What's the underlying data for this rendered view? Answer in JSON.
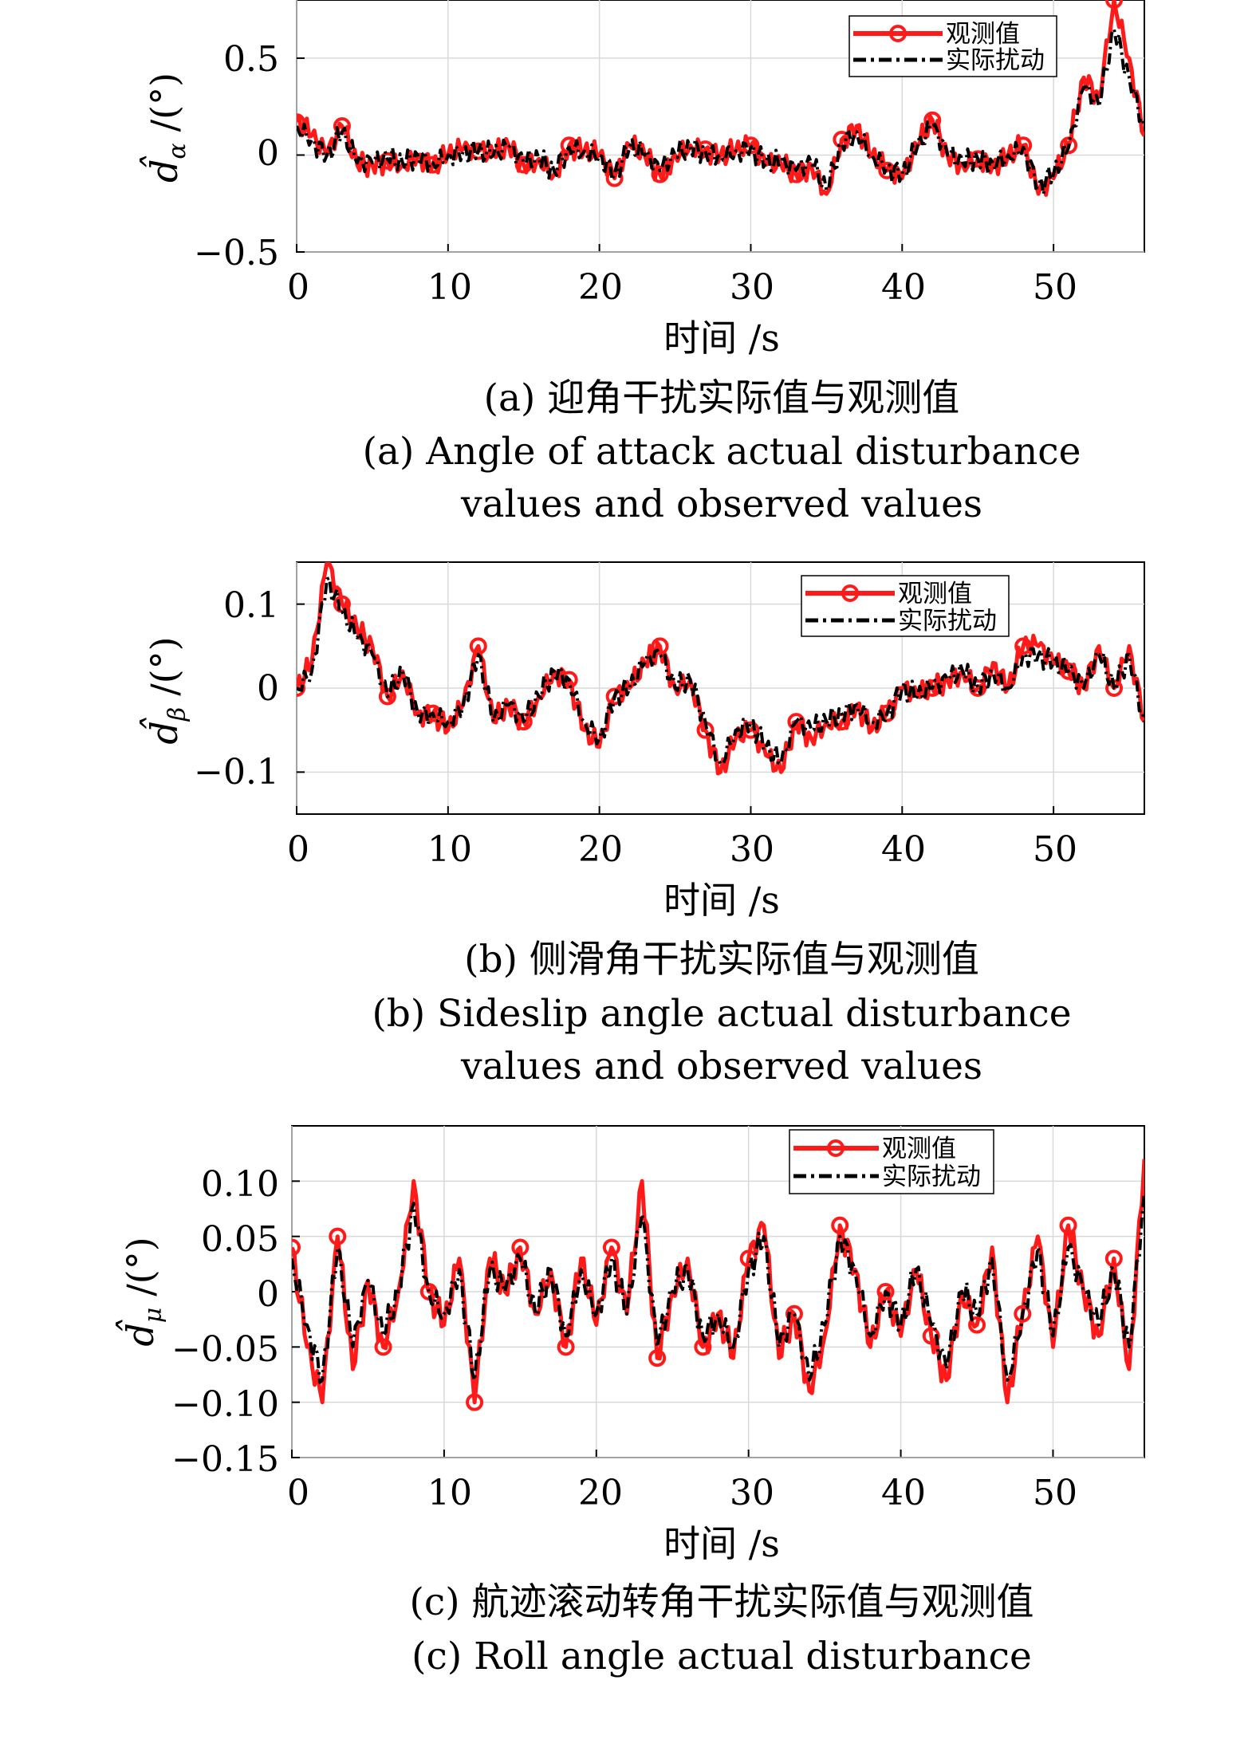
{
  "legend": {
    "observed": "观测值",
    "actual": "实际扰动"
  },
  "colors": {
    "observed": "#ff1a1a",
    "actual": "#000000",
    "grid": "#d9d9d9"
  },
  "charts": [
    {
      "id": "a",
      "ylabel_main": "d̂",
      "ylabel_sub": "α",
      "ylabel_unit": "/(°)",
      "xlabel": "时间 /s",
      "caption_cn": "(a) 迎角干扰实际值与观测值",
      "caption_en_1": "(a) Angle of attack actual disturbance",
      "caption_en_2": "values and observed values",
      "x_ticks": [
        "0",
        "10",
        "20",
        "30",
        "40",
        "50"
      ],
      "y_ticks": [
        "0.5",
        "0",
        "−0.5"
      ]
    },
    {
      "id": "b",
      "ylabel_main": "d̂",
      "ylabel_sub": "β",
      "ylabel_unit": "/(°)",
      "xlabel": "时间 /s",
      "caption_cn": "(b) 侧滑角干扰实际值与观测值",
      "caption_en_1": "(b) Sideslip angle actual disturbance",
      "caption_en_2": "values and observed values",
      "x_ticks": [
        "0",
        "10",
        "20",
        "30",
        "40",
        "50"
      ],
      "y_ticks": [
        "0.1",
        "0",
        "−0.1"
      ]
    },
    {
      "id": "c",
      "ylabel_main": "d̂",
      "ylabel_sub": "μ",
      "ylabel_unit": "/(°)",
      "xlabel": "时间 /s",
      "caption_cn": "(c) 航迹滚动转角干扰实际值与观测值",
      "caption_en_1": "(c) Roll angle actual disturbance",
      "x_ticks": [
        "0",
        "10",
        "20",
        "30",
        "40",
        "50"
      ],
      "y_ticks": [
        "0.10",
        "0.05",
        "0",
        "−0.05",
        "−0.10",
        "−0.15"
      ]
    }
  ],
  "chart_data": [
    {
      "type": "line",
      "xlim": [
        0,
        56
      ],
      "ylim": [
        -0.5,
        0.8
      ],
      "grid": true,
      "legend_position": "top-right",
      "series": [
        {
          "name": "观测值",
          "style": "solid-red-circle-markers",
          "x": [
            0,
            1,
            2,
            3,
            4,
            5,
            6,
            7,
            8,
            9,
            10,
            11,
            12,
            13,
            14,
            15,
            16,
            17,
            18,
            19,
            20,
            21,
            22,
            23,
            24,
            25,
            26,
            27,
            28,
            29,
            30,
            31,
            32,
            33,
            34,
            35,
            36,
            37,
            38,
            39,
            40,
            41,
            42,
            43,
            44,
            45,
            46,
            47,
            48,
            49,
            50,
            51,
            52,
            53,
            54,
            55,
            56
          ],
          "y": [
            0.17,
            0.1,
            0.0,
            0.15,
            -0.05,
            -0.05,
            -0.03,
            -0.05,
            0.0,
            -0.05,
            0.0,
            0.03,
            0.02,
            0.0,
            0.05,
            -0.05,
            -0.02,
            -0.1,
            0.05,
            0.02,
            0.0,
            -0.12,
            0.05,
            0.0,
            -0.1,
            0.0,
            0.05,
            0.03,
            0.0,
            0.02,
            0.05,
            -0.05,
            -0.05,
            -0.1,
            -0.05,
            -0.2,
            0.08,
            0.15,
            0.0,
            -0.08,
            -0.12,
            0.05,
            0.18,
            0.0,
            -0.05,
            -0.02,
            -0.05,
            0.0,
            0.05,
            -0.2,
            -0.12,
            0.05,
            0.4,
            0.3,
            0.8,
            0.5,
            0.1
          ]
        },
        {
          "name": "实际扰动",
          "style": "dash-dot-black",
          "x": [
            0,
            1,
            2,
            3,
            4,
            5,
            6,
            7,
            8,
            9,
            10,
            11,
            12,
            13,
            14,
            15,
            16,
            17,
            18,
            19,
            20,
            21,
            22,
            23,
            24,
            25,
            26,
            27,
            28,
            29,
            30,
            31,
            32,
            33,
            34,
            35,
            36,
            37,
            38,
            39,
            40,
            41,
            42,
            43,
            44,
            45,
            46,
            47,
            48,
            49,
            50,
            51,
            52,
            53,
            54,
            55,
            56
          ],
          "y": [
            0.15,
            0.08,
            0.0,
            0.12,
            -0.04,
            -0.04,
            -0.02,
            -0.04,
            0.0,
            -0.04,
            0.0,
            0.02,
            0.02,
            0.0,
            0.04,
            -0.04,
            -0.02,
            -0.08,
            0.04,
            0.02,
            0.0,
            -0.1,
            0.04,
            0.0,
            -0.08,
            0.0,
            0.04,
            0.02,
            0.0,
            0.02,
            0.04,
            -0.04,
            -0.04,
            -0.08,
            -0.04,
            -0.18,
            0.06,
            0.12,
            0.0,
            -0.06,
            -0.1,
            0.04,
            0.15,
            0.0,
            -0.04,
            -0.02,
            -0.04,
            0.0,
            0.04,
            -0.16,
            -0.1,
            0.04,
            0.35,
            0.25,
            0.65,
            0.4,
            0.15
          ]
        }
      ]
    },
    {
      "type": "line",
      "xlim": [
        0,
        56
      ],
      "ylim": [
        -0.15,
        0.15
      ],
      "grid": true,
      "legend_position": "top-right",
      "series": [
        {
          "name": "观测值",
          "style": "solid-red-circle-markers",
          "x": [
            0,
            1,
            2,
            3,
            4,
            5,
            6,
            7,
            8,
            9,
            10,
            11,
            12,
            13,
            14,
            15,
            16,
            17,
            18,
            19,
            20,
            21,
            22,
            23,
            24,
            25,
            26,
            27,
            28,
            29,
            30,
            31,
            32,
            33,
            34,
            35,
            36,
            37,
            38,
            39,
            40,
            41,
            42,
            43,
            44,
            45,
            46,
            47,
            48,
            49,
            50,
            51,
            52,
            53,
            54,
            55,
            56
          ],
          "y": [
            0.0,
            0.03,
            0.15,
            0.1,
            0.07,
            0.05,
            -0.01,
            0.02,
            -0.03,
            -0.03,
            -0.05,
            -0.02,
            0.05,
            -0.04,
            -0.02,
            -0.04,
            -0.01,
            0.02,
            0.01,
            -0.05,
            -0.07,
            -0.01,
            0.0,
            0.03,
            0.05,
            0.0,
            0.01,
            -0.05,
            -0.1,
            -0.06,
            -0.05,
            -0.08,
            -0.1,
            -0.04,
            -0.06,
            -0.04,
            -0.04,
            -0.02,
            -0.05,
            -0.03,
            0.0,
            -0.01,
            0.0,
            0.01,
            0.02,
            0.0,
            0.03,
            0.0,
            0.05,
            0.05,
            0.03,
            0.02,
            0.0,
            0.05,
            0.0,
            0.05,
            -0.04
          ]
        },
        {
          "name": "实际扰动",
          "style": "dash-dot-black",
          "x": [
            0,
            1,
            2,
            3,
            4,
            5,
            6,
            7,
            8,
            9,
            10,
            11,
            12,
            13,
            14,
            15,
            16,
            17,
            18,
            19,
            20,
            21,
            22,
            23,
            24,
            25,
            26,
            27,
            28,
            29,
            30,
            31,
            32,
            33,
            34,
            35,
            36,
            37,
            38,
            39,
            40,
            41,
            42,
            43,
            44,
            45,
            46,
            47,
            48,
            49,
            50,
            51,
            52,
            53,
            54,
            55,
            56
          ],
          "y": [
            0.0,
            0.02,
            0.13,
            0.09,
            0.06,
            0.04,
            -0.01,
            0.02,
            -0.03,
            -0.03,
            -0.04,
            -0.02,
            0.04,
            -0.04,
            -0.02,
            -0.04,
            -0.01,
            0.02,
            0.01,
            -0.04,
            -0.06,
            -0.01,
            0.0,
            0.03,
            0.04,
            0.0,
            0.01,
            -0.04,
            -0.09,
            -0.05,
            -0.04,
            -0.07,
            -0.09,
            -0.04,
            -0.05,
            -0.04,
            -0.03,
            -0.02,
            -0.04,
            -0.03,
            0.0,
            -0.01,
            0.0,
            0.01,
            0.02,
            0.0,
            0.02,
            0.0,
            0.04,
            0.04,
            0.03,
            0.02,
            0.0,
            0.04,
            0.0,
            0.04,
            -0.04
          ]
        }
      ]
    },
    {
      "type": "line",
      "xlim": [
        0,
        56
      ],
      "ylim": [
        -0.15,
        0.15
      ],
      "grid": true,
      "legend_position": "top-right",
      "series": [
        {
          "name": "观测值",
          "style": "solid-red-circle-markers",
          "x": [
            0,
            1,
            2,
            3,
            4,
            5,
            6,
            7,
            8,
            9,
            10,
            11,
            12,
            13,
            14,
            15,
            16,
            17,
            18,
            19,
            20,
            21,
            22,
            23,
            24,
            25,
            26,
            27,
            28,
            29,
            30,
            31,
            32,
            33,
            34,
            35,
            36,
            37,
            38,
            39,
            40,
            41,
            42,
            43,
            44,
            45,
            46,
            47,
            48,
            49,
            50,
            51,
            52,
            53,
            54,
            55,
            56
          ],
          "y": [
            0.04,
            -0.05,
            -0.1,
            0.05,
            -0.07,
            0.01,
            -0.05,
            0.0,
            0.1,
            0.0,
            -0.03,
            0.03,
            -0.1,
            0.03,
            0.0,
            0.04,
            -0.02,
            0.02,
            -0.05,
            0.03,
            -0.03,
            0.04,
            -0.02,
            0.1,
            -0.06,
            0.0,
            0.03,
            -0.05,
            -0.02,
            -0.06,
            0.03,
            0.06,
            -0.06,
            -0.02,
            -0.09,
            -0.04,
            0.06,
            0.02,
            -0.05,
            0.0,
            -0.04,
            0.02,
            -0.04,
            -0.08,
            0.0,
            -0.03,
            0.04,
            -0.1,
            -0.02,
            0.05,
            -0.05,
            0.06,
            0.0,
            -0.04,
            0.03,
            -0.07,
            0.12
          ]
        },
        {
          "name": "实际扰动",
          "style": "dash-dot-black",
          "x": [
            0,
            1,
            2,
            3,
            4,
            5,
            6,
            7,
            8,
            9,
            10,
            11,
            12,
            13,
            14,
            15,
            16,
            17,
            18,
            19,
            20,
            21,
            22,
            23,
            24,
            25,
            26,
            27,
            28,
            29,
            30,
            31,
            32,
            33,
            34,
            35,
            36,
            37,
            38,
            39,
            40,
            41,
            42,
            43,
            44,
            45,
            46,
            47,
            48,
            49,
            50,
            51,
            52,
            53,
            54,
            55,
            56
          ],
          "y": [
            0.03,
            -0.03,
            -0.08,
            0.04,
            -0.05,
            0.01,
            -0.04,
            0.0,
            0.08,
            0.0,
            -0.02,
            0.02,
            -0.08,
            0.02,
            0.0,
            0.03,
            -0.02,
            0.02,
            -0.04,
            0.02,
            -0.02,
            0.03,
            -0.02,
            0.07,
            -0.05,
            0.0,
            0.02,
            -0.04,
            -0.02,
            -0.05,
            0.02,
            0.05,
            -0.05,
            -0.02,
            -0.08,
            -0.03,
            0.05,
            0.02,
            -0.04,
            0.0,
            -0.03,
            0.02,
            -0.03,
            -0.07,
            0.0,
            -0.02,
            0.03,
            -0.08,
            -0.02,
            0.04,
            -0.04,
            0.04,
            0.0,
            -0.03,
            0.02,
            -0.05,
            0.09
          ]
        }
      ]
    }
  ]
}
